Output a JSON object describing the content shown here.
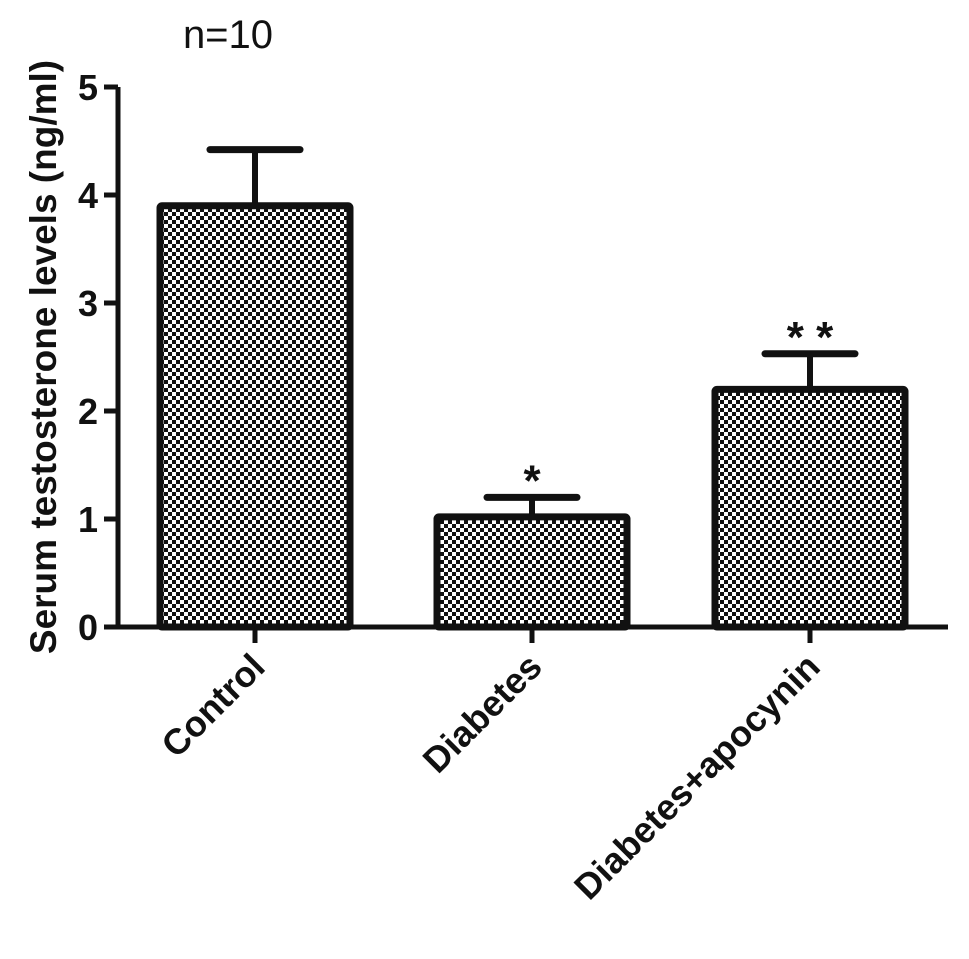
{
  "chart_data": {
    "type": "bar",
    "title": "n=10",
    "xlabel": "",
    "ylabel": "Serum testosterone levels (ng/ml)",
    "ylim": [
      0,
      5
    ],
    "yticks": [
      "0",
      "1",
      "2",
      "3",
      "4",
      "5"
    ],
    "categories": [
      "Control",
      "Diabetes",
      "Diabetes+apocynin"
    ],
    "values": [
      3.9,
      1.02,
      2.2
    ],
    "error_upper": [
      0.52,
      0.18,
      0.33
    ],
    "annotations": [
      "",
      "*",
      "* *"
    ],
    "grid": false,
    "bar_fill": "checkerboard",
    "colors": {
      "stroke": "#111111",
      "background": "#ffffff"
    }
  }
}
